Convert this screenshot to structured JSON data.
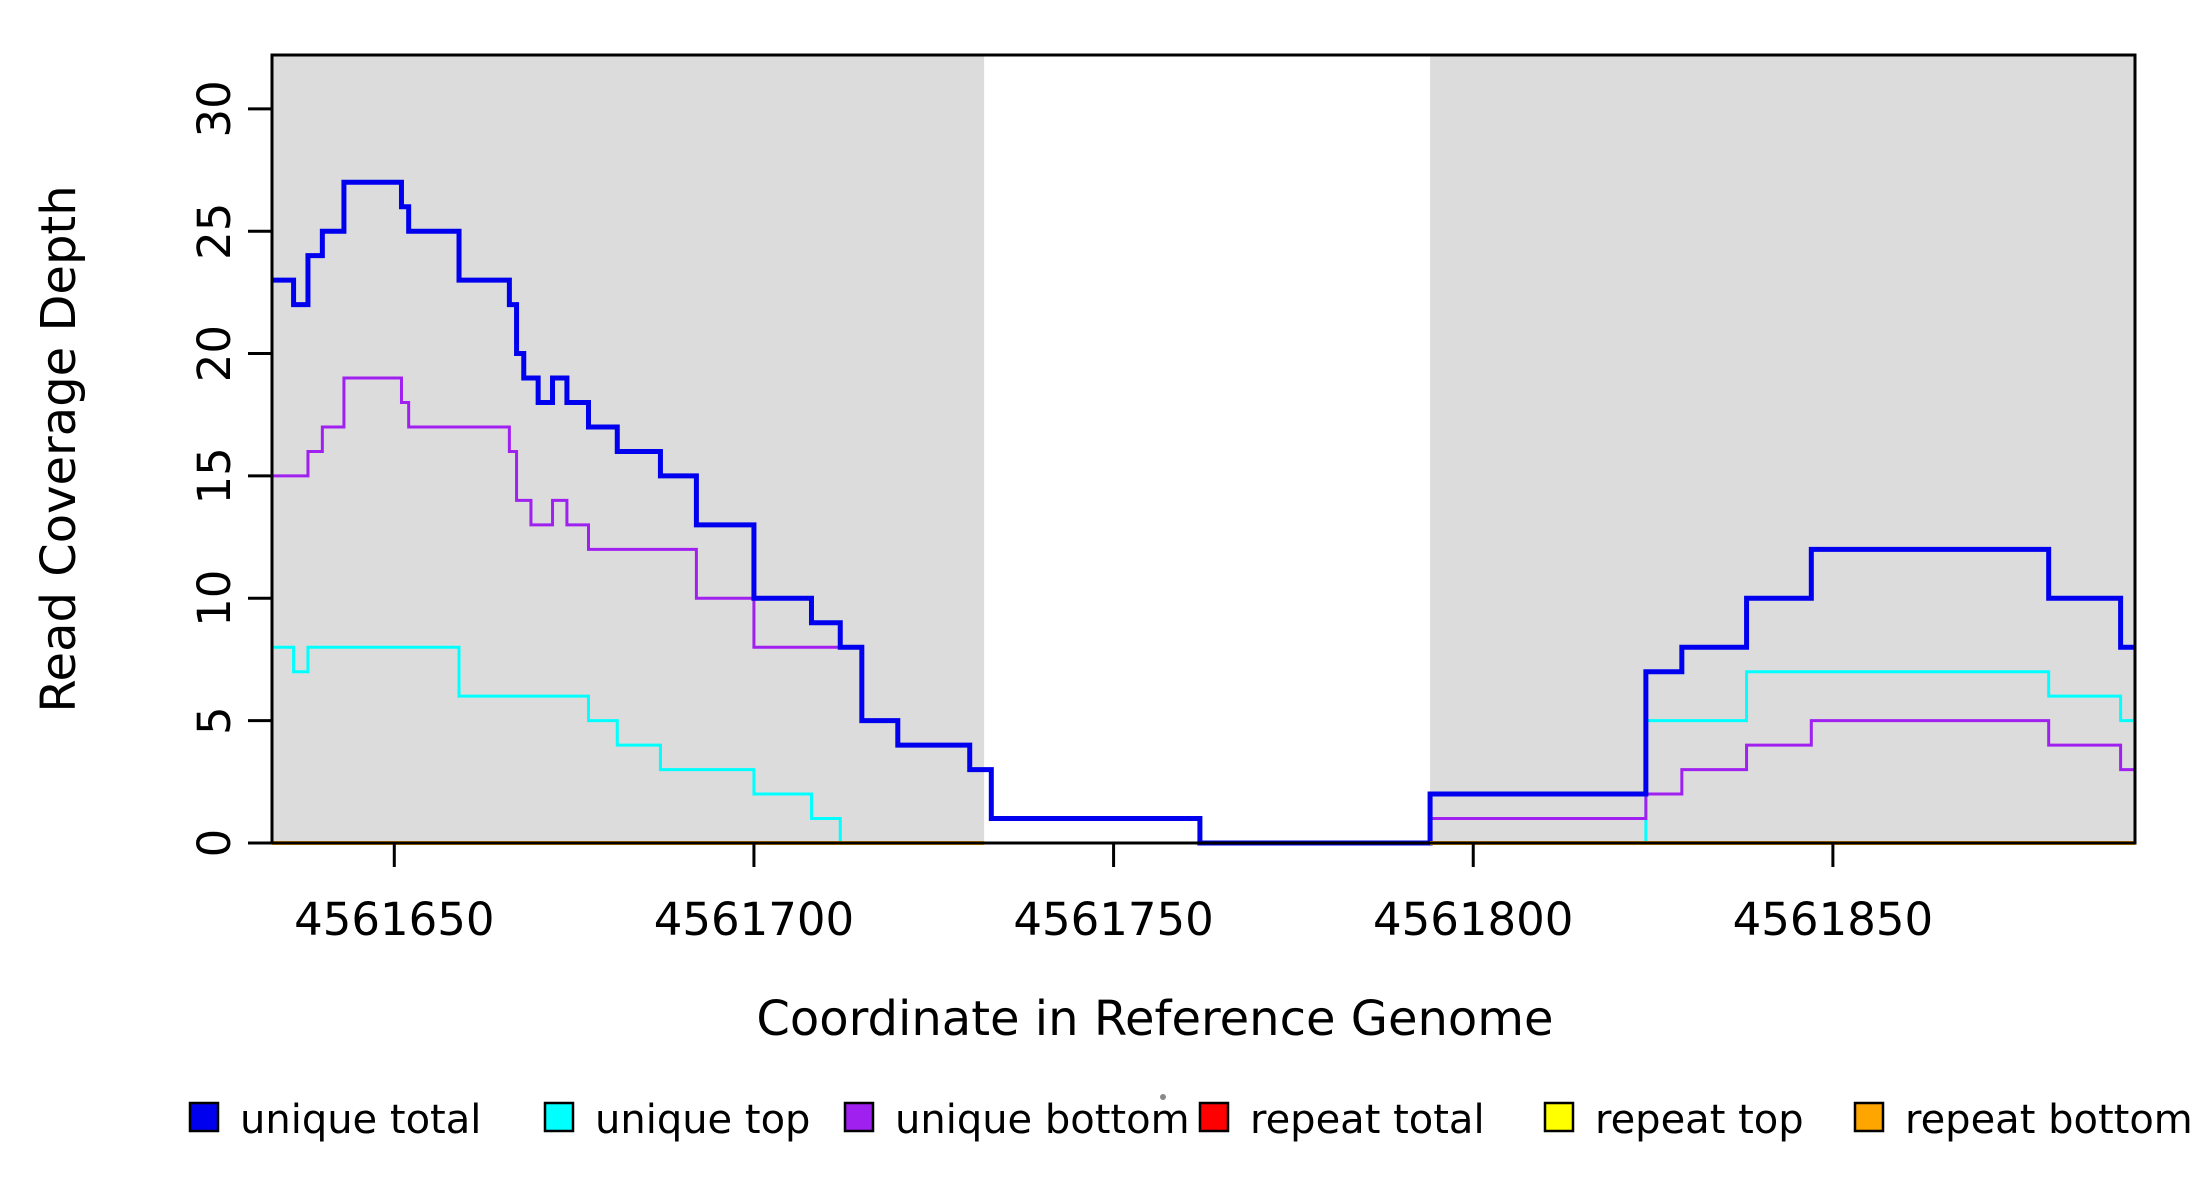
{
  "figure": {
    "background": "#ffffff",
    "panel_shade_color": "#dcdcdc",
    "axis_color": "#000000"
  },
  "chart_data": {
    "type": "line",
    "subtype": "step",
    "title": "",
    "xlabel": "Coordinate in Reference Genome",
    "ylabel": "Read Coverage Depth",
    "xlim": [
      4561633,
      4561892
    ],
    "ylim": [
      0,
      32.2
    ],
    "x_ticks": [
      4561650,
      4561700,
      4561750,
      4561800,
      4561850
    ],
    "y_ticks": [
      0,
      5,
      10,
      15,
      20,
      25,
      30
    ],
    "grid": false,
    "legend_position": "bottom",
    "shaded_regions": [
      {
        "from": 4561633,
        "to": 4561732,
        "color": "#dcdcdc"
      },
      {
        "from": 4561794,
        "to": 4561892,
        "color": "#dcdcdc"
      }
    ],
    "series": [
      {
        "name": "unique total",
        "color": "#0000ee",
        "lwd": 5,
        "segments": [
          [
            [
              4561633,
              23
            ],
            [
              4561636,
              22
            ],
            [
              4561638,
              24
            ],
            [
              4561640,
              25
            ],
            [
              4561643,
              27
            ],
            [
              4561651,
              26
            ],
            [
              4561652,
              25
            ],
            [
              4561659,
              23
            ],
            [
              4561666,
              22
            ],
            [
              4561667,
              20
            ],
            [
              4561668,
              19
            ],
            [
              4561670,
              18
            ],
            [
              4561672,
              19
            ],
            [
              4561674,
              18
            ],
            [
              4561677,
              17
            ],
            [
              4561681,
              16
            ],
            [
              4561687,
              15
            ],
            [
              4561692,
              13
            ],
            [
              4561700,
              10
            ],
            [
              4561708,
              9
            ],
            [
              4561712,
              8
            ],
            [
              4561715,
              5
            ],
            [
              4561720,
              4
            ],
            [
              4561730,
              3
            ],
            [
              4561733,
              1
            ],
            [
              4561762,
              0
            ],
            [
              4561794,
              2
            ],
            [
              4561824,
              7
            ],
            [
              4561829,
              8
            ],
            [
              4561838,
              10
            ],
            [
              4561847,
              12
            ],
            [
              4561880,
              10
            ],
            [
              4561890,
              8
            ],
            [
              4561892,
              8
            ]
          ]
        ]
      },
      {
        "name": "unique top",
        "color": "#00ffff",
        "lwd": 3,
        "segments": [
          [
            [
              4561633,
              8
            ],
            [
              4561636,
              7
            ],
            [
              4561638,
              8
            ],
            [
              4561659,
              6
            ],
            [
              4561677,
              5
            ],
            [
              4561681,
              4
            ],
            [
              4561687,
              3
            ],
            [
              4561700,
              2
            ],
            [
              4561708,
              1
            ],
            [
              4561712,
              0
            ],
            [
              4561824,
              5
            ],
            [
              4561838,
              7
            ],
            [
              4561880,
              6
            ],
            [
              4561890,
              5
            ],
            [
              4561892,
              5
            ]
          ]
        ]
      },
      {
        "name": "unique bottom",
        "color": "#a020f0",
        "lwd": 3,
        "segments": [
          [
            [
              4561633,
              15
            ],
            [
              4561638,
              16
            ],
            [
              4561640,
              17
            ],
            [
              4561643,
              19
            ],
            [
              4561651,
              18
            ],
            [
              4561652,
              17
            ],
            [
              4561666,
              16
            ],
            [
              4561667,
              14
            ],
            [
              4561669,
              13
            ],
            [
              4561672,
              14
            ],
            [
              4561674,
              13
            ],
            [
              4561677,
              12
            ],
            [
              4561692,
              10
            ],
            [
              4561700,
              8
            ],
            [
              4561715,
              5
            ],
            [
              4561720,
              4
            ],
            [
              4561730,
              3
            ],
            [
              4561733,
              1
            ],
            [
              4561762,
              0
            ],
            [
              4561794,
              1
            ],
            [
              4561824,
              2
            ],
            [
              4561829,
              3
            ],
            [
              4561838,
              4
            ],
            [
              4561847,
              5
            ],
            [
              4561880,
              4
            ],
            [
              4561890,
              3
            ],
            [
              4561892,
              3
            ]
          ]
        ]
      },
      {
        "name": "repeat total",
        "color": "#ff0000",
        "lwd": 4,
        "segments": [
          [
            [
              4561633,
              0
            ],
            [
              4561732,
              0
            ]
          ],
          [
            [
              4561794,
              0
            ],
            [
              4561892,
              0
            ]
          ]
        ]
      },
      {
        "name": "repeat top",
        "color": "#ffff00",
        "lwd": 4,
        "segments": [
          [
            [
              4561633,
              0
            ],
            [
              4561732,
              0
            ]
          ],
          [
            [
              4561794,
              0
            ],
            [
              4561892,
              0
            ]
          ]
        ]
      },
      {
        "name": "repeat bottom",
        "color": "#ffa500",
        "lwd": 4,
        "segments": [
          [
            [
              4561633,
              0
            ],
            [
              4561732,
              0
            ]
          ],
          [
            [
              4561794,
              0
            ],
            [
              4561892,
              0
            ]
          ]
        ]
      }
    ],
    "draw_order": [
      1,
      2,
      0,
      3,
      4,
      5
    ],
    "stray_dot": {
      "x": 1163,
      "y": 1097,
      "color": "#888888"
    }
  }
}
